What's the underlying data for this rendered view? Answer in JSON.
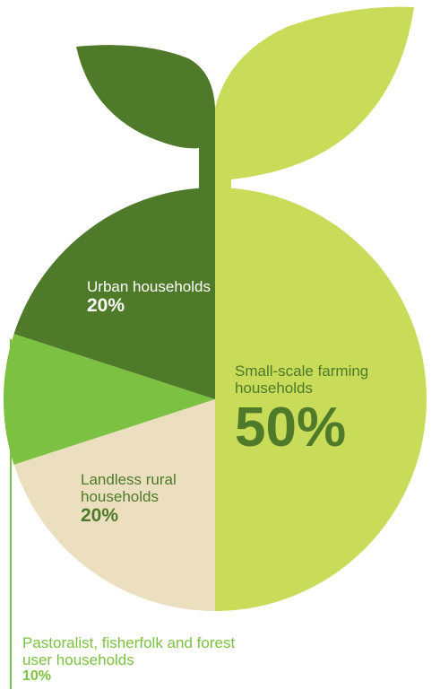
{
  "chart_data": {
    "type": "pie",
    "categories": [
      "Small-scale farming households",
      "Landless rural households",
      "Pastoralist, fisherfolk and forest user households",
      "Urban households"
    ],
    "values": [
      50,
      20,
      10,
      20
    ],
    "value_labels": [
      "50%",
      "20%",
      "10%",
      "20%"
    ],
    "colors": [
      "#c8dc5a",
      "#ebdfc0",
      "#7cc142",
      "#4f7a29"
    ]
  }
}
